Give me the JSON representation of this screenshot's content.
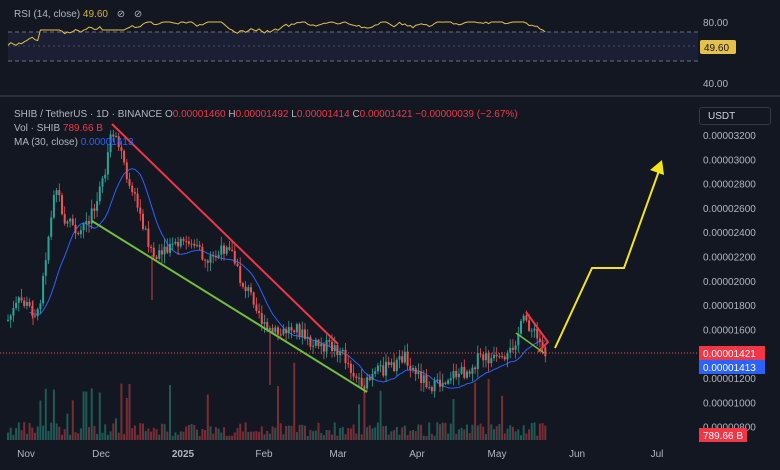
{
  "rsi_panel": {
    "title": "RSI (14, close)",
    "value": "49.60",
    "levels": [
      "80.00",
      "40.00"
    ],
    "badge": "49.60"
  },
  "price_panel": {
    "symbol": "SHIB / TetherUS · 1D · BINANCE",
    "o_label": "O",
    "o_value": "0.00001460",
    "h_label": "H",
    "h_value": "0.00001492",
    "l_label": "L",
    "l_value": "0.00001414",
    "c_label": "C",
    "c_value": "0.00001421",
    "change": "−0.00000039 (−2.67%)",
    "vol_label": "Vol · SHIB",
    "vol_value": "789.66 B",
    "ma_label": "MA (30, close)",
    "ma_value": "0.00001413",
    "currency": "USDT",
    "price_badge": "0.00001421",
    "ma_badge": "0.00001413",
    "vol_badge": "789.66 B"
  },
  "chart_data": {
    "type": "candlestick",
    "y_ticks": [
      "0.00003200",
      "0.00003000",
      "0.00002800",
      "0.00002600",
      "0.00002400",
      "0.00002200",
      "0.00002000",
      "0.00001800",
      "0.00001600",
      "0.00001400",
      "0.00001200",
      "0.00001000",
      "0.00000800"
    ],
    "x_ticks": [
      "Nov",
      "Dec",
      "2025",
      "Feb",
      "Mar",
      "Apr",
      "May",
      "Jun",
      "Jul"
    ],
    "ylim": [
      7.8e-06,
      3.32e-05
    ],
    "rsi_lim": [
      20,
      100
    ],
    "current_price": 1.421e-05,
    "ma_value": 1.413e-05
  },
  "colors": {
    "up": "#26a69a",
    "down": "#ef5350",
    "ma": "#2962ff",
    "rsi": "#e6c14a",
    "red_trend": "#f23645",
    "green_trend": "#6fbf3c",
    "projection": "#f5e31c"
  }
}
